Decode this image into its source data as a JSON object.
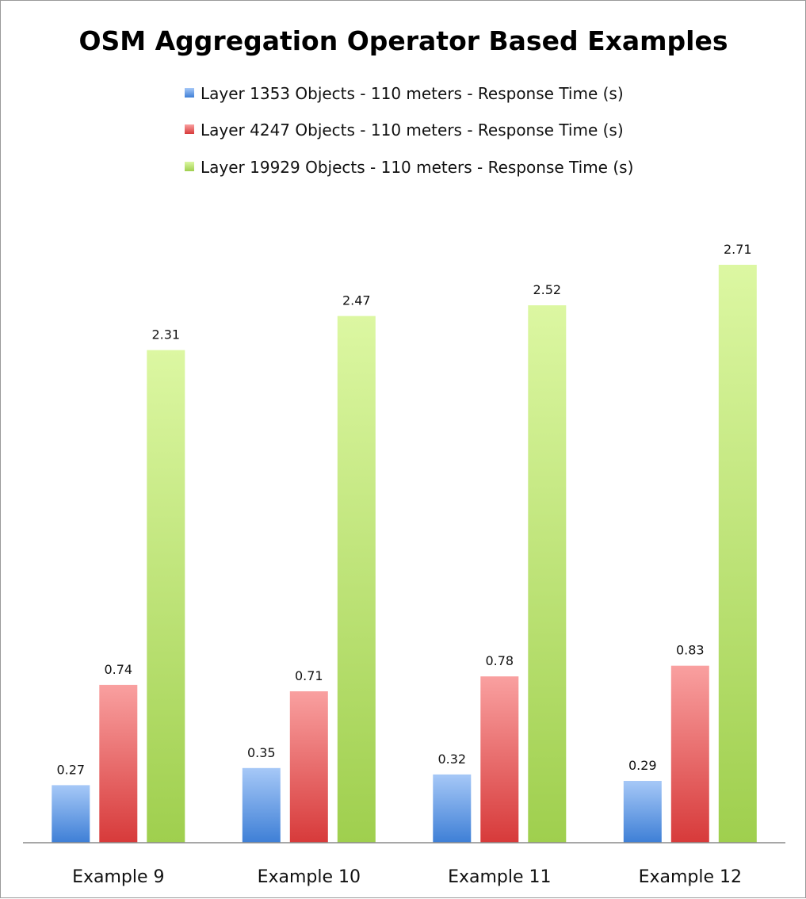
{
  "chart_data": {
    "type": "bar",
    "title": "OSM Aggregation Operator Based Examples",
    "categories": [
      "Example 9",
      "Example 10",
      "Example 11",
      "Example 12"
    ],
    "series": [
      {
        "name": "Layer 1353 Objects - 110 meters - Response Time (s)",
        "values": [
          0.27,
          0.35,
          0.32,
          0.29
        ],
        "value_labels": [
          "0.27",
          "0.35",
          "0.32",
          "0.29"
        ],
        "color": "#5b93e0"
      },
      {
        "name": "Layer 4247 Objects - 110 meters - Response Time (s)",
        "values": [
          0.74,
          0.71,
          0.78,
          0.83
        ],
        "value_labels": [
          "0.74",
          "0.71",
          "0.78",
          "0.83"
        ],
        "color": "#e05a5a"
      },
      {
        "name": "Layer 19929 Objects - 110 meters - Response Time (s)",
        "values": [
          2.31,
          2.47,
          2.52,
          2.71
        ],
        "value_labels": [
          "2.31",
          "2.47",
          "2.52",
          "2.71"
        ],
        "color": "#b8e06a"
      }
    ],
    "xlabel": "",
    "ylabel": "",
    "ylim": [
      0,
      2.71
    ],
    "grid": false,
    "legend_position": "top-center"
  }
}
